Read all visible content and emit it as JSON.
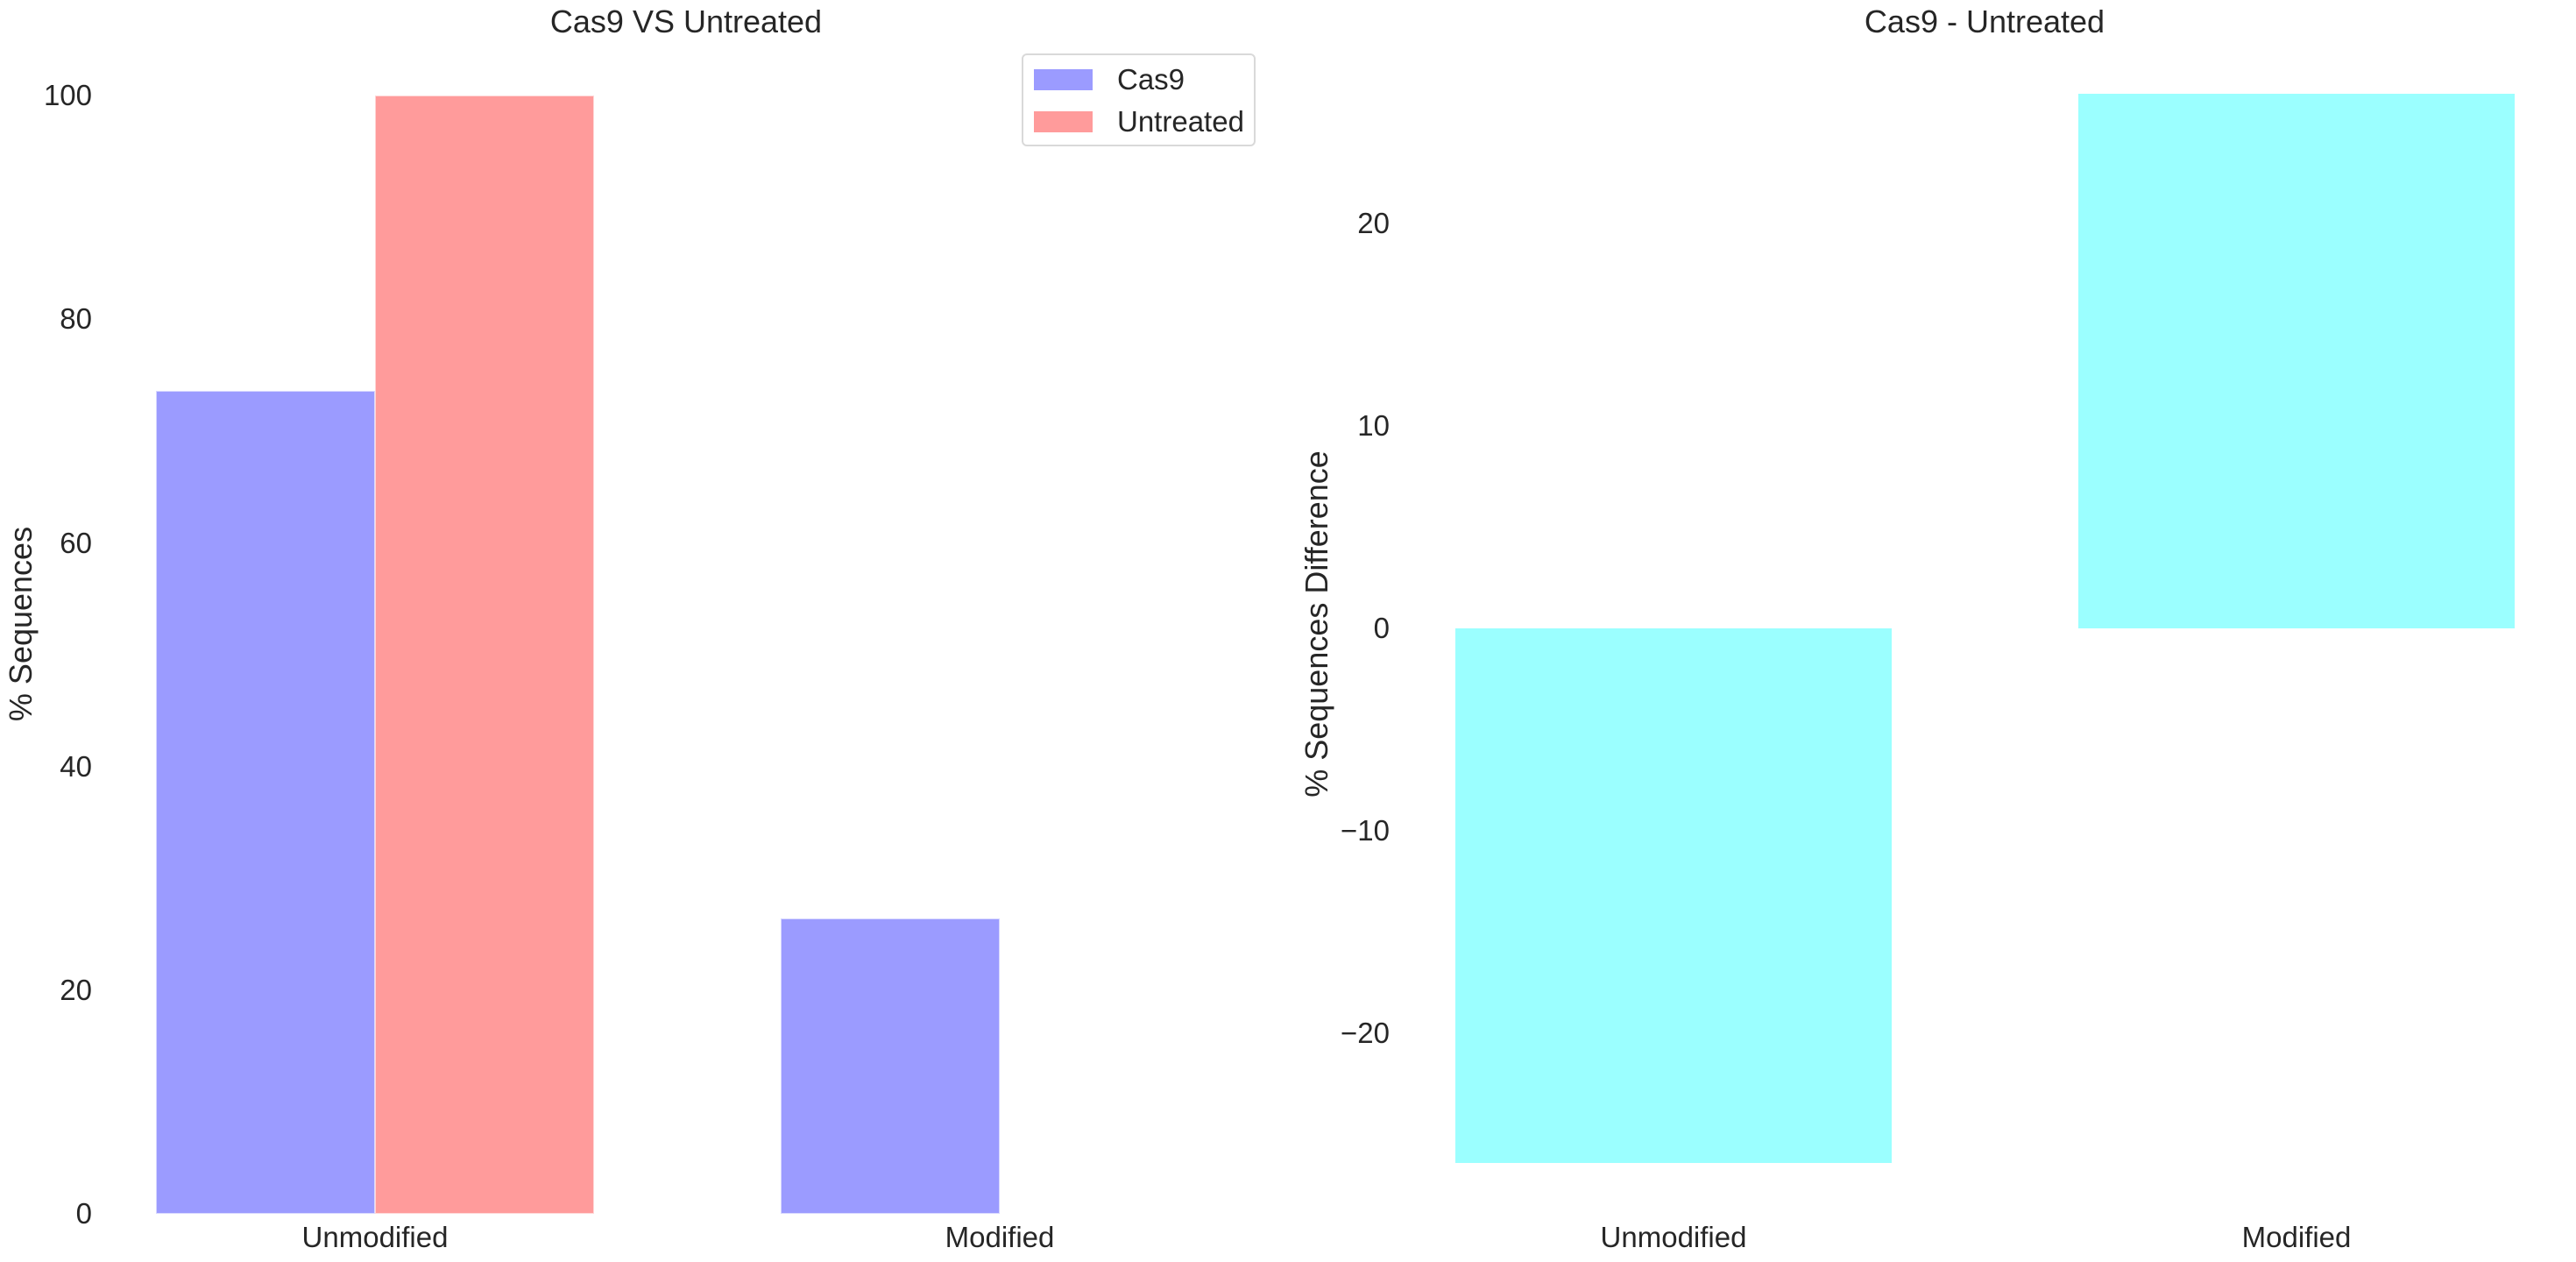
{
  "chart_data": [
    {
      "type": "bar",
      "title": "Cas9 VS Untreated",
      "xlabel": "",
      "ylabel": "% Sequences",
      "categories": [
        "Unmodified",
        "Modified"
      ],
      "series": [
        {
          "name": "Cas9",
          "values": [
            73.6,
            26.4
          ],
          "color": "#9b9bff"
        },
        {
          "name": "Untreated",
          "values": [
            100.0,
            0.0
          ],
          "color": "#ff9b9b"
        }
      ],
      "ylim": [
        0,
        100
      ],
      "yticks": [
        0,
        20,
        40,
        60,
        80,
        100
      ],
      "grid": false,
      "legend_position": "upper right"
    },
    {
      "type": "bar",
      "title": "Cas9 - Untreated",
      "xlabel": "",
      "ylabel": "% Sequences Difference",
      "categories": [
        "Unmodified",
        "Modified"
      ],
      "series": [
        {
          "name": "Cas9 - Untreated",
          "values": [
            -26.4,
            26.4
          ],
          "color": "#9bffff"
        }
      ],
      "ylim": [
        -26.4,
        26.4
      ],
      "yticks": [
        -20,
        -10,
        0,
        10,
        20
      ],
      "ytick_labels": [
        "−20",
        "−10",
        "0",
        "10",
        "20"
      ],
      "grid": false,
      "legend_position": "none"
    }
  ],
  "left": {
    "title": "Cas9 VS Untreated",
    "ylabel": "% Sequences",
    "yticks": [
      "0",
      "20",
      "40",
      "60",
      "80",
      "100"
    ],
    "xticks": [
      "Unmodified",
      "Modified"
    ],
    "legend": [
      {
        "label": "Cas9",
        "color": "#9b9bff"
      },
      {
        "label": "Untreated",
        "color": "#ff9b9b"
      }
    ]
  },
  "right": {
    "title": "Cas9 - Untreated",
    "ylabel": "% Sequences Difference",
    "yticks": [
      "−20",
      "−10",
      "0",
      "10",
      "20"
    ],
    "xticks": [
      "Unmodified",
      "Modified"
    ]
  }
}
